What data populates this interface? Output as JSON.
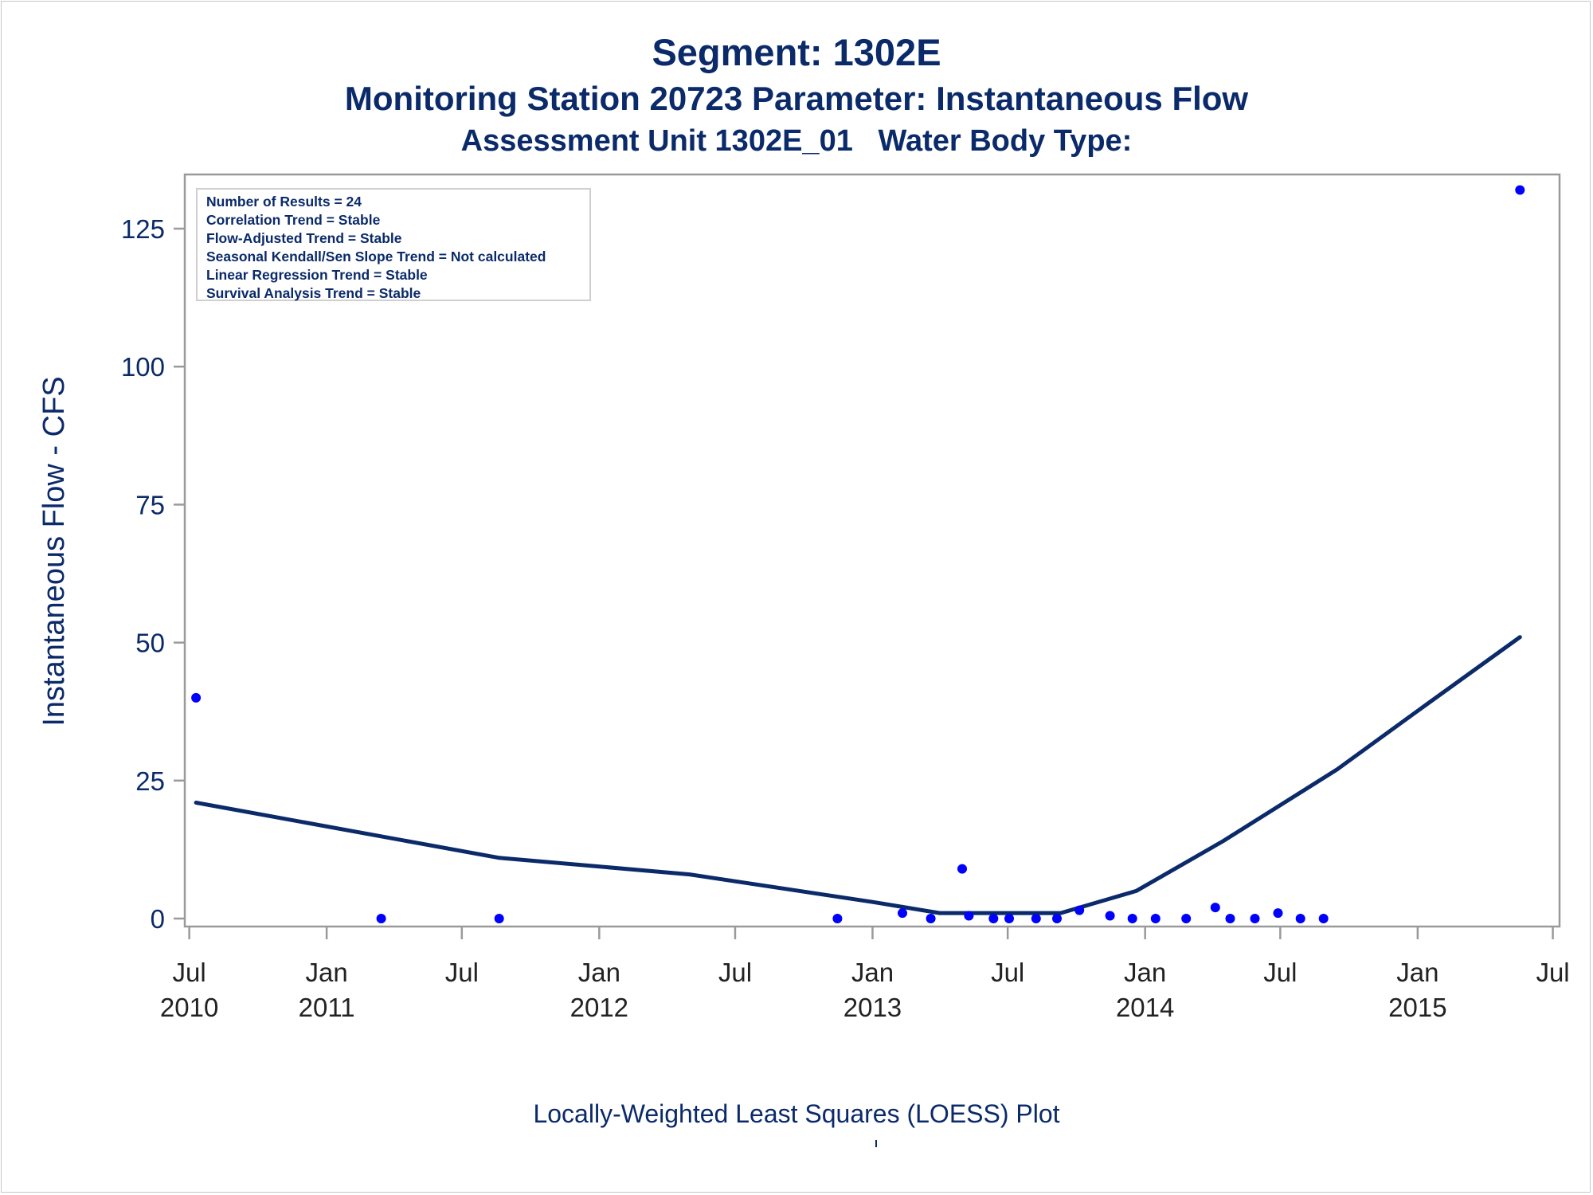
{
  "title": "Segment: 1302E",
  "subtitle1": "Monitoring Station 20723 Parameter: Instantaneous Flow",
  "subtitle2": "Assessment Unit 1302E_01   Water Body Type:",
  "footnote": "Locally-Weighted Least Squares (LOESS) Plot",
  "stats": [
    "Number of Results = 24",
    "Correlation Trend = Stable",
    "Flow-Adjusted Trend = Stable",
    "Seasonal Kendall/Sen Slope Trend = Not calculated",
    "Linear Regression Trend = Stable",
    "Survival Analysis Trend = Stable"
  ],
  "colors": {
    "text": "#0b2a6a",
    "points": "#0000ff",
    "loess_line": "#0b2a6a",
    "axis": "#9a9a9a"
  },
  "chart_data": {
    "type": "scatter",
    "ylabel": "Instantaneous Flow - CFS",
    "xlabel": "",
    "ylim": [
      0,
      132
    ],
    "xlim": [
      "2010-06-25",
      "2015-07-10"
    ],
    "y_ticks": [
      0,
      25,
      50,
      75,
      100,
      125
    ],
    "x_ticks": [
      {
        "date": "2010-07-01",
        "month": "Jul",
        "year": "2010"
      },
      {
        "date": "2011-01-01",
        "month": "Jan",
        "year": "2011"
      },
      {
        "date": "2011-07-01",
        "month": "Jul",
        "year": ""
      },
      {
        "date": "2012-01-01",
        "month": "Jan",
        "year": "2012"
      },
      {
        "date": "2012-07-01",
        "month": "Jul",
        "year": ""
      },
      {
        "date": "2013-01-01",
        "month": "Jan",
        "year": "2013"
      },
      {
        "date": "2013-07-01",
        "month": "Jul",
        "year": ""
      },
      {
        "date": "2014-01-01",
        "month": "Jan",
        "year": "2014"
      },
      {
        "date": "2014-07-01",
        "month": "Jul",
        "year": ""
      },
      {
        "date": "2015-01-01",
        "month": "Jan",
        "year": "2015"
      },
      {
        "date": "2015-07-01",
        "month": "Jul",
        "year": ""
      }
    ],
    "grid": false,
    "series": [
      {
        "kind": "scatter",
        "points": [
          {
            "x": "2010-07-10",
            "y": 40
          },
          {
            "x": "2011-03-15",
            "y": 0
          },
          {
            "x": "2011-08-20",
            "y": 0
          },
          {
            "x": "2012-11-15",
            "y": 0
          },
          {
            "x": "2013-02-10",
            "y": 1
          },
          {
            "x": "2013-03-20",
            "y": 0
          },
          {
            "x": "2013-05-01",
            "y": 9
          },
          {
            "x": "2013-05-10",
            "y": 0.5
          },
          {
            "x": "2013-06-12",
            "y": 0
          },
          {
            "x": "2013-07-03",
            "y": 0
          },
          {
            "x": "2013-08-08",
            "y": 0
          },
          {
            "x": "2013-09-05",
            "y": 0
          },
          {
            "x": "2013-10-05",
            "y": 1.5
          },
          {
            "x": "2013-11-15",
            "y": 0.5
          },
          {
            "x": "2013-12-15",
            "y": 0
          },
          {
            "x": "2014-01-15",
            "y": 0
          },
          {
            "x": "2014-02-25",
            "y": 0
          },
          {
            "x": "2014-04-05",
            "y": 2
          },
          {
            "x": "2014-04-25",
            "y": 0
          },
          {
            "x": "2014-05-28",
            "y": 0
          },
          {
            "x": "2014-06-28",
            "y": 1
          },
          {
            "x": "2014-07-28",
            "y": 0
          },
          {
            "x": "2014-08-28",
            "y": 0
          },
          {
            "x": "2015-05-18",
            "y": 132
          }
        ]
      },
      {
        "kind": "line",
        "points": [
          {
            "x": "2010-07-10",
            "y": 21
          },
          {
            "x": "2011-08-20",
            "y": 11
          },
          {
            "x": "2012-05-01",
            "y": 8
          },
          {
            "x": "2013-01-01",
            "y": 3
          },
          {
            "x": "2013-04-01",
            "y": 1
          },
          {
            "x": "2013-09-10",
            "y": 1
          },
          {
            "x": "2013-12-20",
            "y": 5
          },
          {
            "x": "2014-04-15",
            "y": 14
          },
          {
            "x": "2014-09-15",
            "y": 27
          },
          {
            "x": "2015-01-15",
            "y": 39
          },
          {
            "x": "2015-05-18",
            "y": 51
          }
        ]
      }
    ]
  }
}
